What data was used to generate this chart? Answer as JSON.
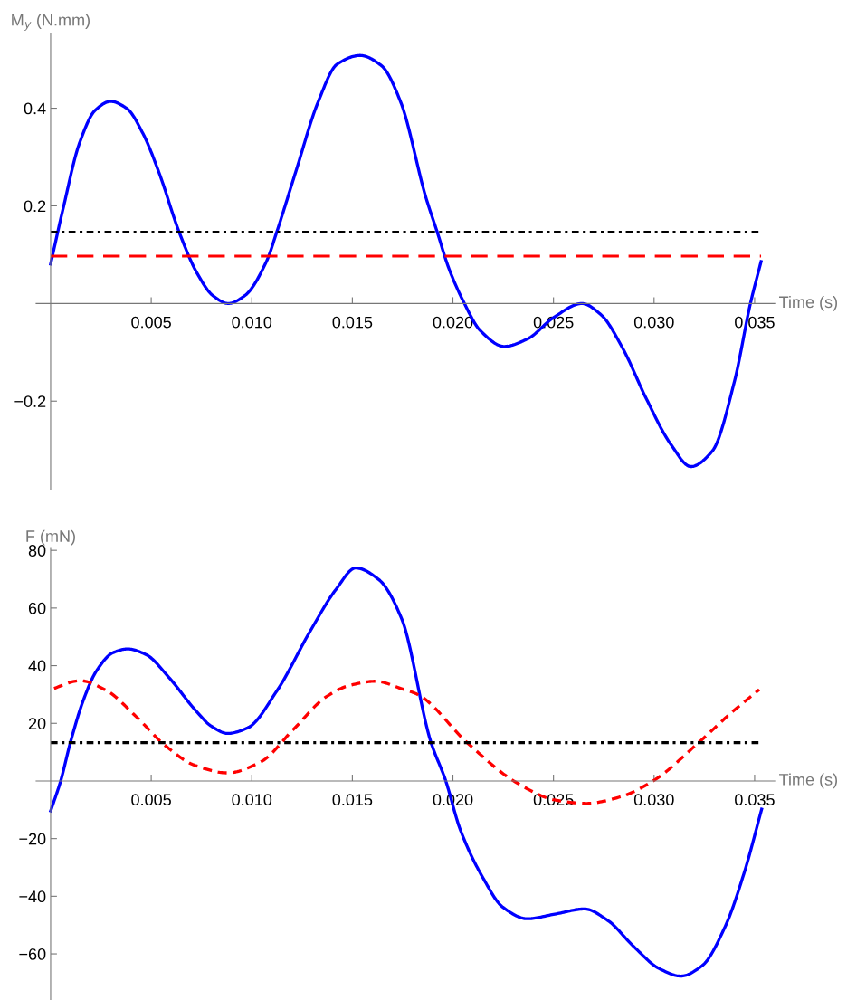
{
  "chart_data": [
    {
      "type": "line",
      "ylabel": "M$_{y}$ (N.mm)",
      "xlabel": "Time (s)",
      "xlim": [
        -0.00072,
        0.036
      ],
      "ylim": [
        -0.38,
        0.554
      ],
      "xticks": [
        0.005,
        {
          "value": 0.01,
          "label": "0.010"
        },
        0.015,
        {
          "value": 0.02,
          "label": "0.020"
        },
        0.025,
        {
          "value": 0.03,
          "label": "0.030"
        },
        0.035
      ],
      "yticks": [
        -0.2,
        0.2,
        0.4
      ],
      "series": [
        {
          "color": "#0000ff",
          "line_style": "solid",
          "x": [
            0,
            0.00064,
            0.00143,
            0.00222,
            0.00298,
            0.0038,
            0.00459,
            0.00538,
            0.0064,
            0.00728,
            0.00807,
            0.00883,
            0.00965,
            0.01075,
            0.01123,
            0.01218,
            0.0133,
            0.01424,
            0.01538,
            0.01645,
            0.0174,
            0.01865,
            0.01923,
            0.01977,
            0.02057,
            0.02135,
            0.02255,
            0.02373,
            0.025,
            0.02642,
            0.02736,
            0.02847,
            0.02958,
            0.03084,
            0.03183,
            0.0329,
            0.034,
            0.03479,
            0.03532
          ],
          "values": [
            0.081,
            0.198,
            0.328,
            0.396,
            0.414,
            0.399,
            0.348,
            0.269,
            0.145,
            0.062,
            0.016,
            0,
            0.016,
            0.088,
            0.145,
            0.269,
            0.413,
            0.49,
            0.508,
            0.487,
            0.413,
            0.218,
            0.145,
            0.075,
            0,
            -0.055,
            -0.088,
            -0.072,
            -0.029,
            0,
            -0.023,
            -0.094,
            -0.192,
            -0.289,
            -0.334,
            -0.302,
            -0.159,
            0,
            0.086
          ]
        }
      ],
      "ref_lines": [
        {
          "axis": "y",
          "value": 0.146,
          "color": "#000000",
          "line_style": "dashdot"
        },
        {
          "axis": "y",
          "value": 0.097,
          "color": "#ff0000",
          "line_style": "dashed"
        }
      ]
    },
    {
      "type": "line",
      "ylabel": "F (mN)",
      "xlabel": "Time (s)",
      "xlim": [
        -0.00072,
        0.036
      ],
      "ylim": [
        -76,
        81
      ],
      "xticks": [
        0.005,
        {
          "value": 0.01,
          "label": "0.010"
        },
        0.015,
        {
          "value": 0.02,
          "label": "0.020"
        },
        0.025,
        {
          "value": 0.03,
          "label": "0.030"
        },
        0.035
      ],
      "yticks": [
        -60,
        -40,
        -20,
        20,
        40,
        60,
        80
      ],
      "series": [
        {
          "color": "#0000ff",
          "line_style": "solid",
          "x": [
            0,
            0.00049,
            0.00098,
            0.00163,
            0.00228,
            0.0031,
            0.00383,
            0.00473,
            0.00587,
            0.00718,
            0.00799,
            0.0088,
            0.00979,
            0.01126,
            0.01289,
            0.01419,
            0.01517,
            0.01631,
            0.01745,
            0.0189,
            0.01963,
            0.02036,
            0.0215,
            0.02248,
            0.02369,
            0.02507,
            0.02654,
            0.02768,
            0.02898,
            0.03028,
            0.03133,
            0.03239,
            0.03353,
            0.0345,
            0.03535
          ],
          "values": [
            -10.4,
            -0.2,
            13.3,
            28.1,
            38.2,
            44.5,
            45.8,
            43.9,
            36,
            24.7,
            19,
            16.5,
            18.4,
            31.4,
            51.8,
            66.5,
            73.9,
            69.9,
            56.3,
            13.6,
            0.3,
            -16.8,
            -33.7,
            -43.8,
            -47.8,
            -46.2,
            -44.4,
            -48.3,
            -57.4,
            -65.2,
            -67.7,
            -64.1,
            -50.6,
            -31.4,
            -9.8
          ]
        },
        {
          "color": "#ff0000",
          "line_style": "dashed",
          "x": [
            0,
            0.00147,
            0.00277,
            0.00424,
            0.00571,
            0.00718,
            0.0088,
            0.01044,
            0.01207,
            0.0137,
            0.01484,
            0.01615,
            0.01745,
            0.01825,
            0.02069,
            0.02312,
            0.02507,
            0.02662,
            0.02833,
            0.02995,
            0.03223,
            0.03386,
            0.03523
          ],
          "values": [
            31.7,
            34.8,
            31.4,
            22.4,
            12.2,
            5.4,
            2.8,
            6.6,
            17.9,
            29.2,
            33.1,
            34.6,
            32,
            30,
            13.4,
            -0.4,
            -6.6,
            -7.8,
            -5.5,
            0,
            13.4,
            23.8,
            31.7
          ]
        }
      ],
      "ref_lines": [
        {
          "axis": "y",
          "value": 13.3,
          "color": "#000000",
          "line_style": "dashdot"
        }
      ]
    }
  ]
}
